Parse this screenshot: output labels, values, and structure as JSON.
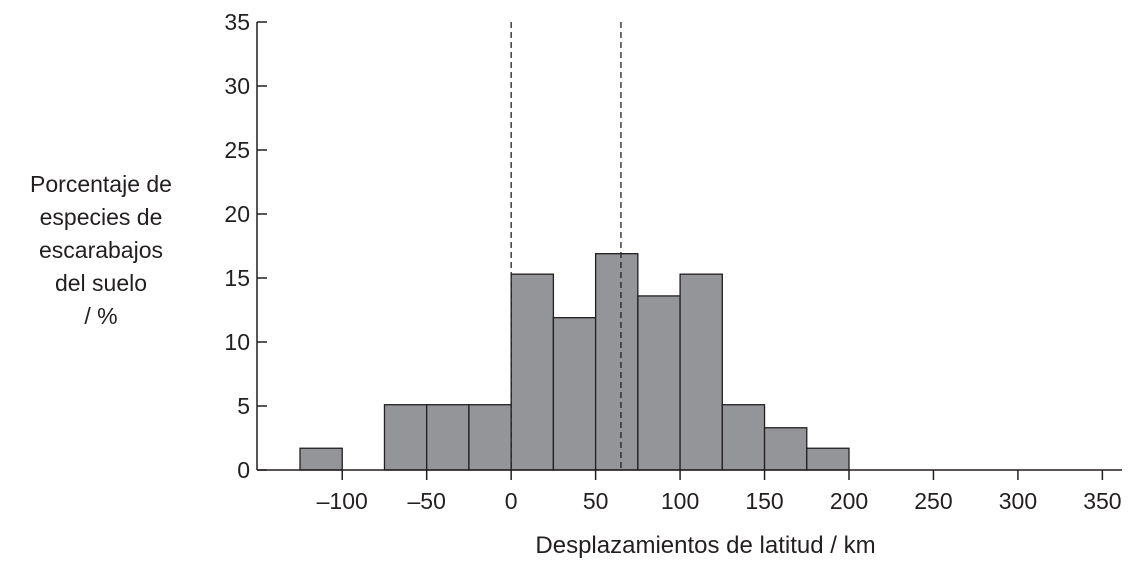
{
  "chart_data": {
    "type": "bar",
    "histogram": true,
    "title": "",
    "xlabel": "Desplazamientos de latitud / km",
    "ylabel_lines": [
      "Porcentaje de",
      "especies de",
      "escarabajos",
      "del suelo",
      "/ %"
    ],
    "xlim": [
      -125,
      362
    ],
    "ylim": [
      0,
      35
    ],
    "x_ticks": [
      -100,
      -50,
      0,
      50,
      100,
      150,
      200,
      250,
      300,
      350
    ],
    "x_tick_labels": [
      "–100",
      "–50",
      "0",
      "50",
      "100",
      "150",
      "200",
      "250",
      "300",
      "350"
    ],
    "y_ticks": [
      0,
      5,
      10,
      15,
      20,
      25,
      30,
      35
    ],
    "y_tick_labels": [
      "0",
      "5",
      "10",
      "15",
      "20",
      "25",
      "30",
      "35"
    ],
    "bin_width": 25,
    "bins": [
      {
        "start": -125,
        "end": -100,
        "value": 1.7
      },
      {
        "start": -100,
        "end": -75,
        "value": 0
      },
      {
        "start": -75,
        "end": -50,
        "value": 5.1
      },
      {
        "start": -50,
        "end": -25,
        "value": 5.1
      },
      {
        "start": -25,
        "end": 0,
        "value": 5.1
      },
      {
        "start": 0,
        "end": 25,
        "value": 15.3
      },
      {
        "start": 25,
        "end": 50,
        "value": 11.9
      },
      {
        "start": 50,
        "end": 75,
        "value": 16.9
      },
      {
        "start": 75,
        "end": 100,
        "value": 13.6
      },
      {
        "start": 100,
        "end": 125,
        "value": 15.3
      },
      {
        "start": 125,
        "end": 150,
        "value": 5.1
      },
      {
        "start": 150,
        "end": 175,
        "value": 3.3
      },
      {
        "start": 175,
        "end": 200,
        "value": 1.7
      }
    ],
    "reference_lines": [
      {
        "x": 0,
        "style": "dashed"
      },
      {
        "x": 65,
        "style": "dashed"
      }
    ],
    "bar_fill": "#939598",
    "bar_stroke": "#231f20",
    "axis_color": "#231f20",
    "grid": false,
    "legend": "none"
  }
}
